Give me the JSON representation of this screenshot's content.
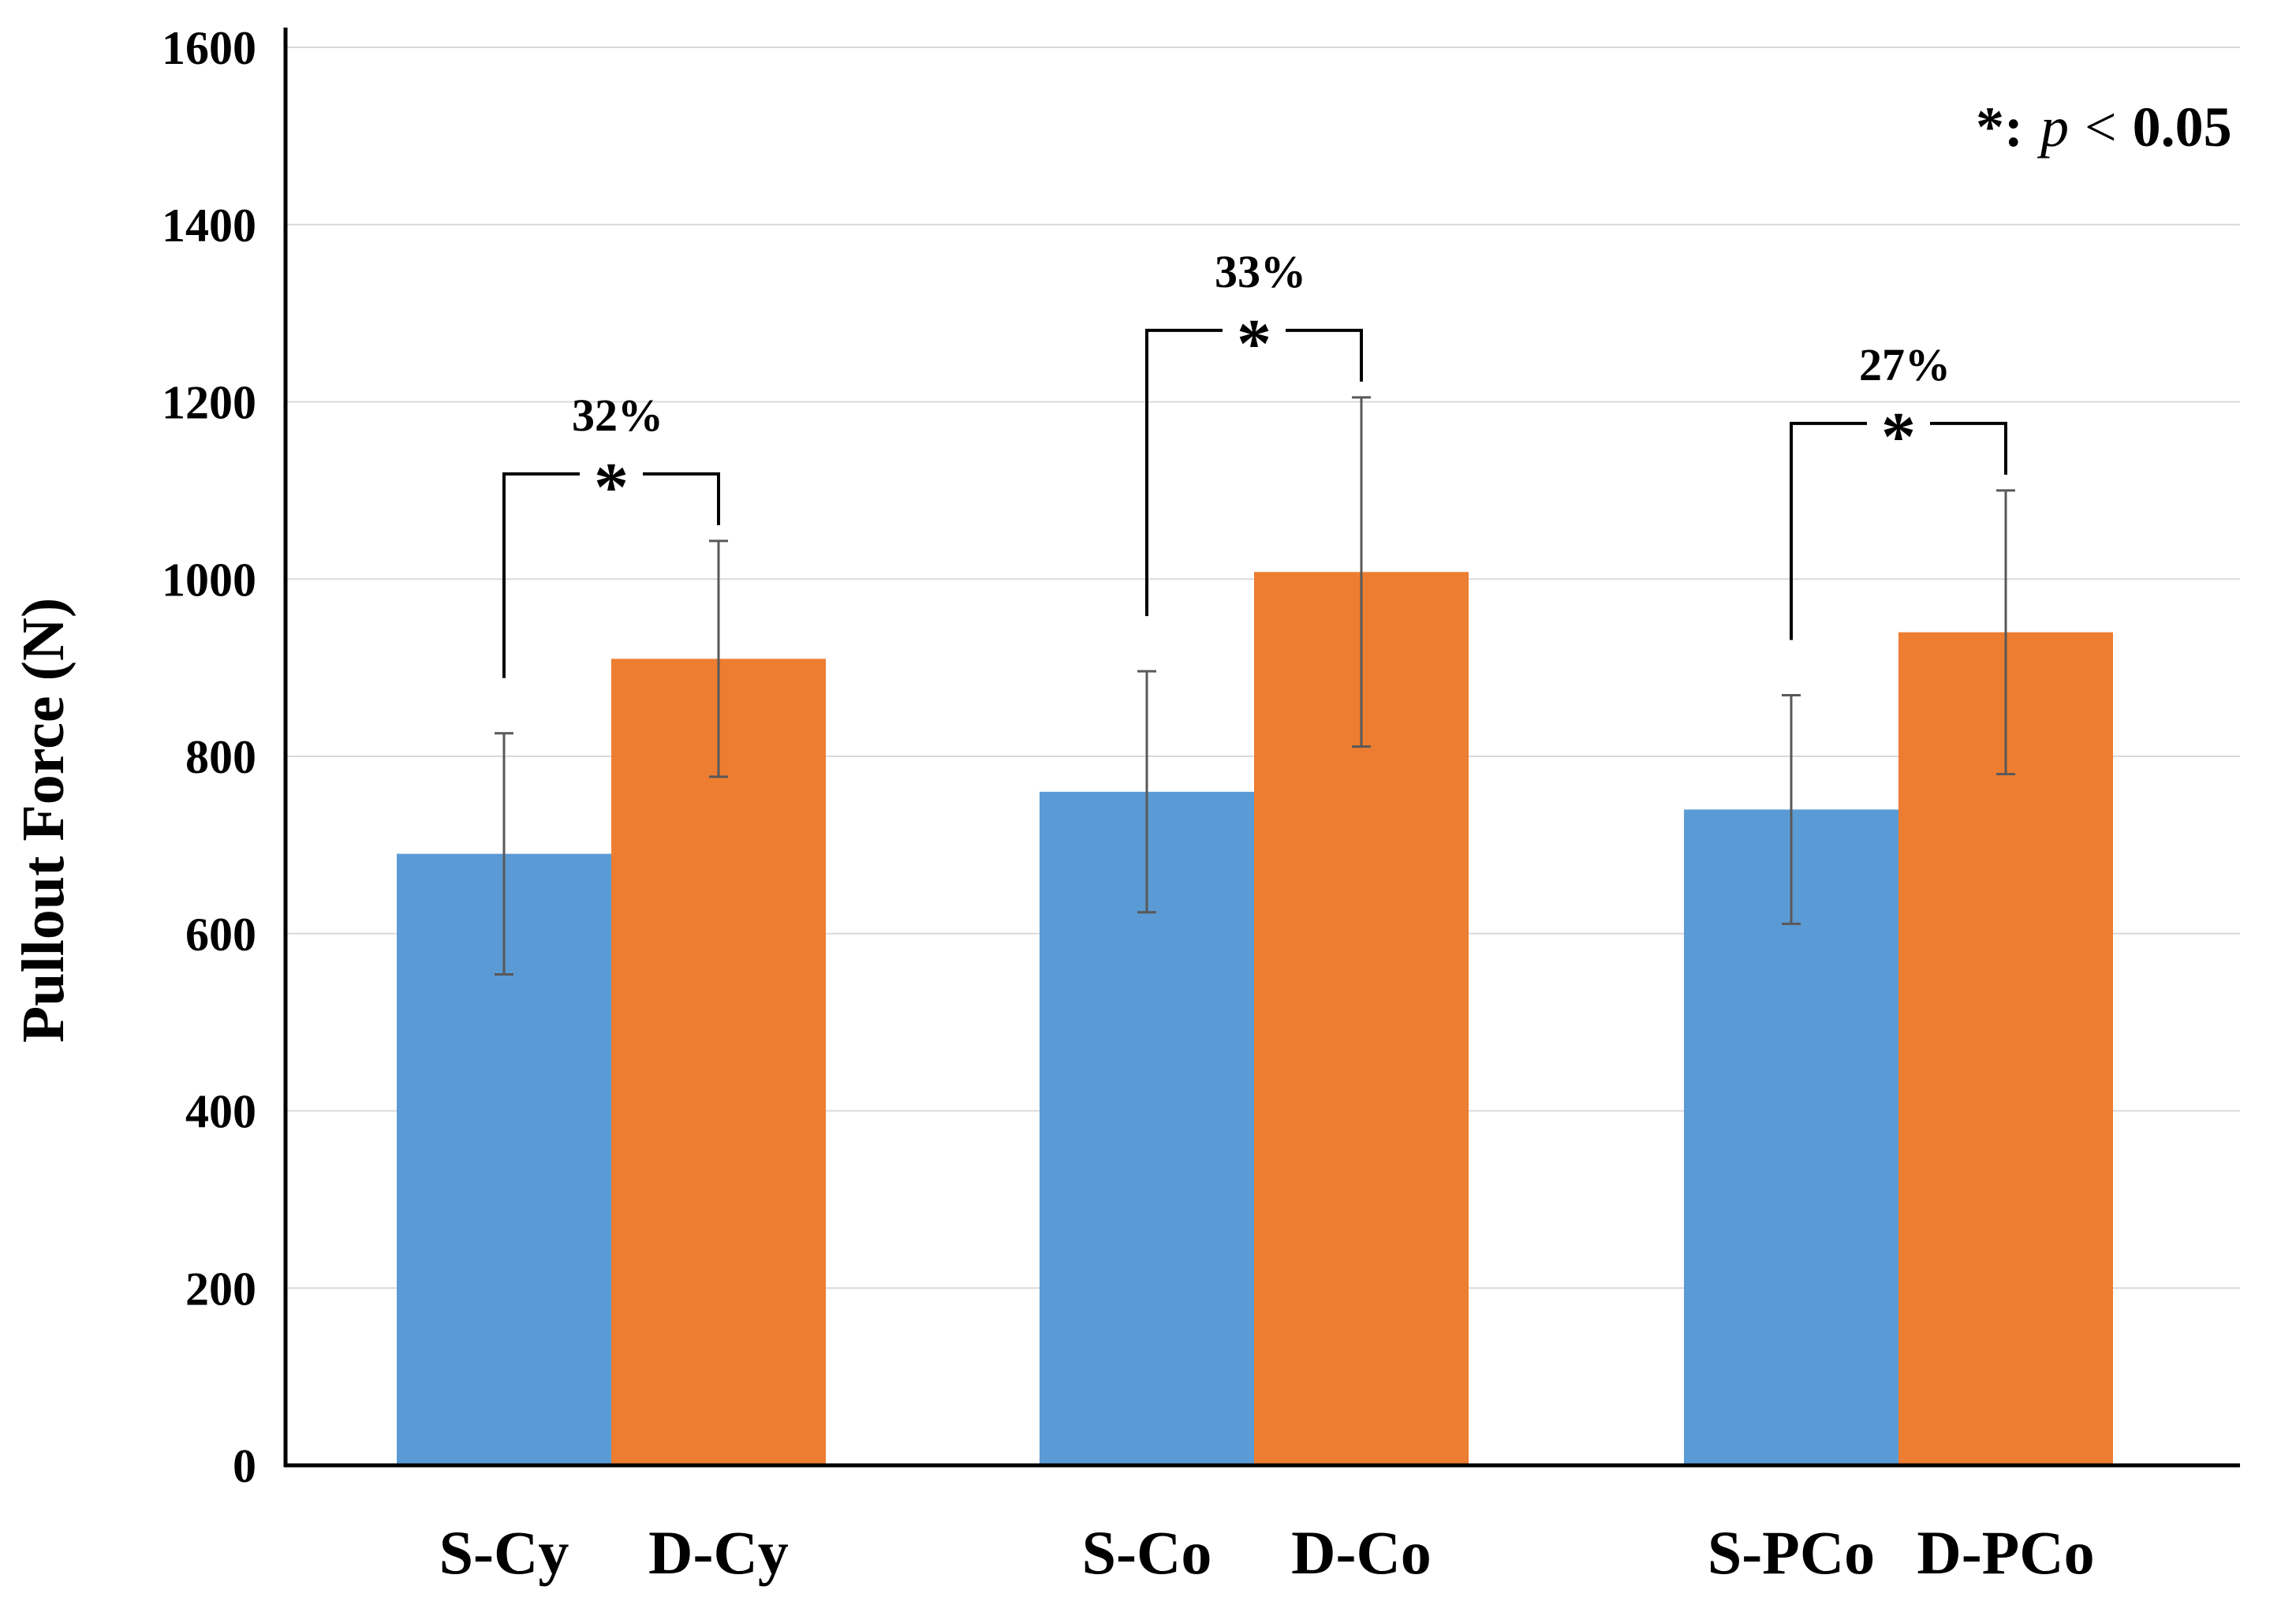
{
  "chart_data": {
    "type": "bar",
    "title": "",
    "xlabel": "",
    "ylabel": "Pullout Force (N)",
    "ylim": [
      0,
      1600
    ],
    "yticks": [
      0,
      200,
      400,
      600,
      800,
      1000,
      1200,
      1400,
      1600
    ],
    "grid": true,
    "groups": [
      {
        "bars": [
          {
            "label": "S-Cy",
            "value": 690,
            "error": 136,
            "color": "#5B9BD5"
          },
          {
            "label": "D-Cy",
            "value": 910,
            "error": 133,
            "color": "#ED7D31"
          }
        ],
        "significance": {
          "label": "32%",
          "marker": "*"
        }
      },
      {
        "bars": [
          {
            "label": "S-Co",
            "value": 760,
            "error": 136,
            "color": "#5B9BD5"
          },
          {
            "label": "D-Co",
            "value": 1008,
            "error": 197,
            "color": "#ED7D31"
          }
        ],
        "significance": {
          "label": "33%",
          "marker": "*"
        }
      },
      {
        "bars": [
          {
            "label": "S-PCo",
            "value": 740,
            "error": 129,
            "color": "#5B9BD5"
          },
          {
            "label": "D-PCo",
            "value": 940,
            "error": 160,
            "color": "#ED7D31"
          }
        ],
        "significance": {
          "label": "27%",
          "marker": "*"
        }
      }
    ],
    "note": {
      "marker": "*",
      "colon": ":",
      "p": "p",
      "op": "<",
      "threshold": "0.05"
    }
  }
}
